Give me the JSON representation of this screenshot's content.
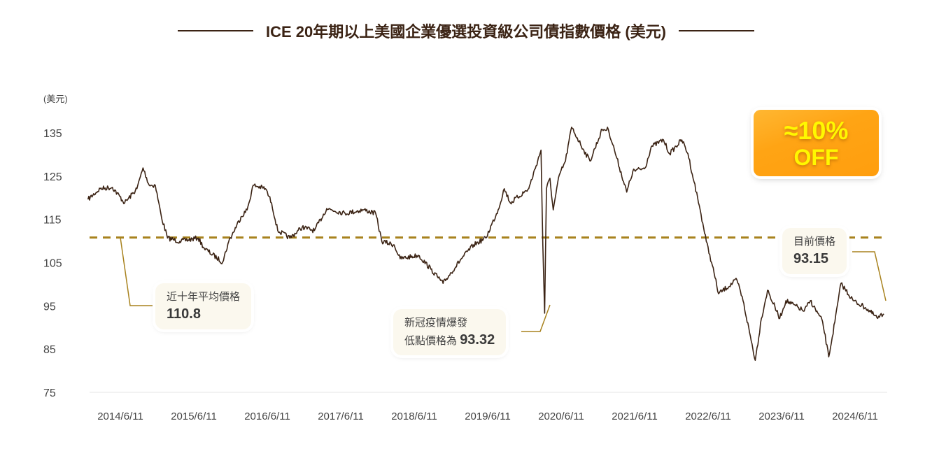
{
  "chart_data": {
    "type": "line",
    "title": "ICE 20年期以上美國企業優選投資級公司債指數價格 (美元)",
    "ylabel": "(美元)",
    "xlabel": "",
    "ylim": [
      75,
      135
    ],
    "yticks": [
      75,
      85,
      95,
      105,
      115,
      125,
      135
    ],
    "xticks": [
      "2014/6/11",
      "2015/6/11",
      "2016/6/11",
      "2017/6/11",
      "2018/6/11",
      "2019/6/11",
      "2020/6/11",
      "2021/6/11",
      "2022/6/11",
      "2023/6/11",
      "2024/6/11"
    ],
    "grid": false,
    "line_color": "#3b2314",
    "reference_line": {
      "value": 110.8,
      "color": "#a8821e",
      "style": "dashed"
    },
    "x": [
      "2014-01",
      "2014-03",
      "2014-05",
      "2014-07",
      "2014-09",
      "2014-10",
      "2014-11",
      "2014-12",
      "2015-01",
      "2015-02",
      "2015-04",
      "2015-07",
      "2015-08",
      "2015-11",
      "2015-12",
      "2016-02",
      "2016-03",
      "2016-04",
      "2016-06",
      "2016-07",
      "2016-08",
      "2016-10",
      "2016-12",
      "2017-02",
      "2017-04",
      "2017-07",
      "2017-10",
      "2017-12",
      "2018-01",
      "2018-03",
      "2018-04",
      "2018-07",
      "2018-09",
      "2018-11",
      "2019-02",
      "2019-04",
      "2019-06",
      "2019-08",
      "2019-09",
      "2019-10",
      "2020-01",
      "2020-03-01",
      "2020-03-10",
      "2020-03-19",
      "2020-03-28",
      "2020-04-15",
      "2020-05",
      "2020-06",
      "2020-07",
      "2020-08",
      "2020-10",
      "2020-11",
      "2021-01",
      "2021-02",
      "2021-03",
      "2021-05",
      "2021-06",
      "2021-08",
      "2021-09",
      "2021-11",
      "2021-12",
      "2022-02",
      "2022-03",
      "2022-04",
      "2022-05",
      "2022-06",
      "2022-07",
      "2022-08",
      "2022-11",
      "2022-12",
      "2023-02",
      "2023-03",
      "2023-04",
      "2023-06",
      "2023-07",
      "2023-10",
      "2023-11",
      "2024-01",
      "2024-02",
      "2024-03",
      "2024-04",
      "2024-06",
      "2024-08",
      "2024-10",
      "2024-11"
    ],
    "values": [
      119.6,
      122.1,
      122.4,
      118.8,
      122.1,
      126.9,
      122.9,
      122.9,
      115.6,
      110.7,
      109.9,
      110.7,
      108.3,
      105.1,
      109.9,
      115.6,
      117.2,
      122.9,
      122.1,
      118.8,
      112.4,
      110.7,
      113.2,
      112.4,
      117.5,
      116.4,
      117.2,
      116.4,
      109.9,
      109.1,
      105.9,
      106.7,
      103.5,
      100.2,
      105.9,
      109.1,
      110.7,
      117.2,
      122.1,
      118.8,
      122.1,
      131.0,
      109.1,
      93.3,
      122.1,
      124.5,
      117.2,
      125.3,
      128.5,
      136.3,
      131.0,
      128.5,
      135.8,
      135.8,
      131.0,
      121.3,
      126.1,
      126.9,
      131.8,
      133.4,
      130.2,
      133.4,
      130.2,
      123.7,
      117.2,
      109.9,
      104.3,
      97.8,
      101.0,
      96.2,
      82.4,
      92.1,
      98.6,
      92.1,
      96.2,
      93.8,
      96.2,
      91.3,
      83.2,
      91.3,
      100.2,
      96.2,
      94.6,
      92.1,
      93.15
    ]
  },
  "annotations": {
    "average": {
      "label": "近十年平均價格",
      "value": "110.8"
    },
    "covid": {
      "label_line1": "新冠疫情爆發",
      "label_line2": "低點價格為",
      "value": "93.32"
    },
    "current": {
      "label": "目前價格",
      "value": "93.15"
    }
  },
  "badge": {
    "line1": "≈10%",
    "line2": "OFF",
    "color": "#ffa414",
    "text_color": "#fff800"
  }
}
